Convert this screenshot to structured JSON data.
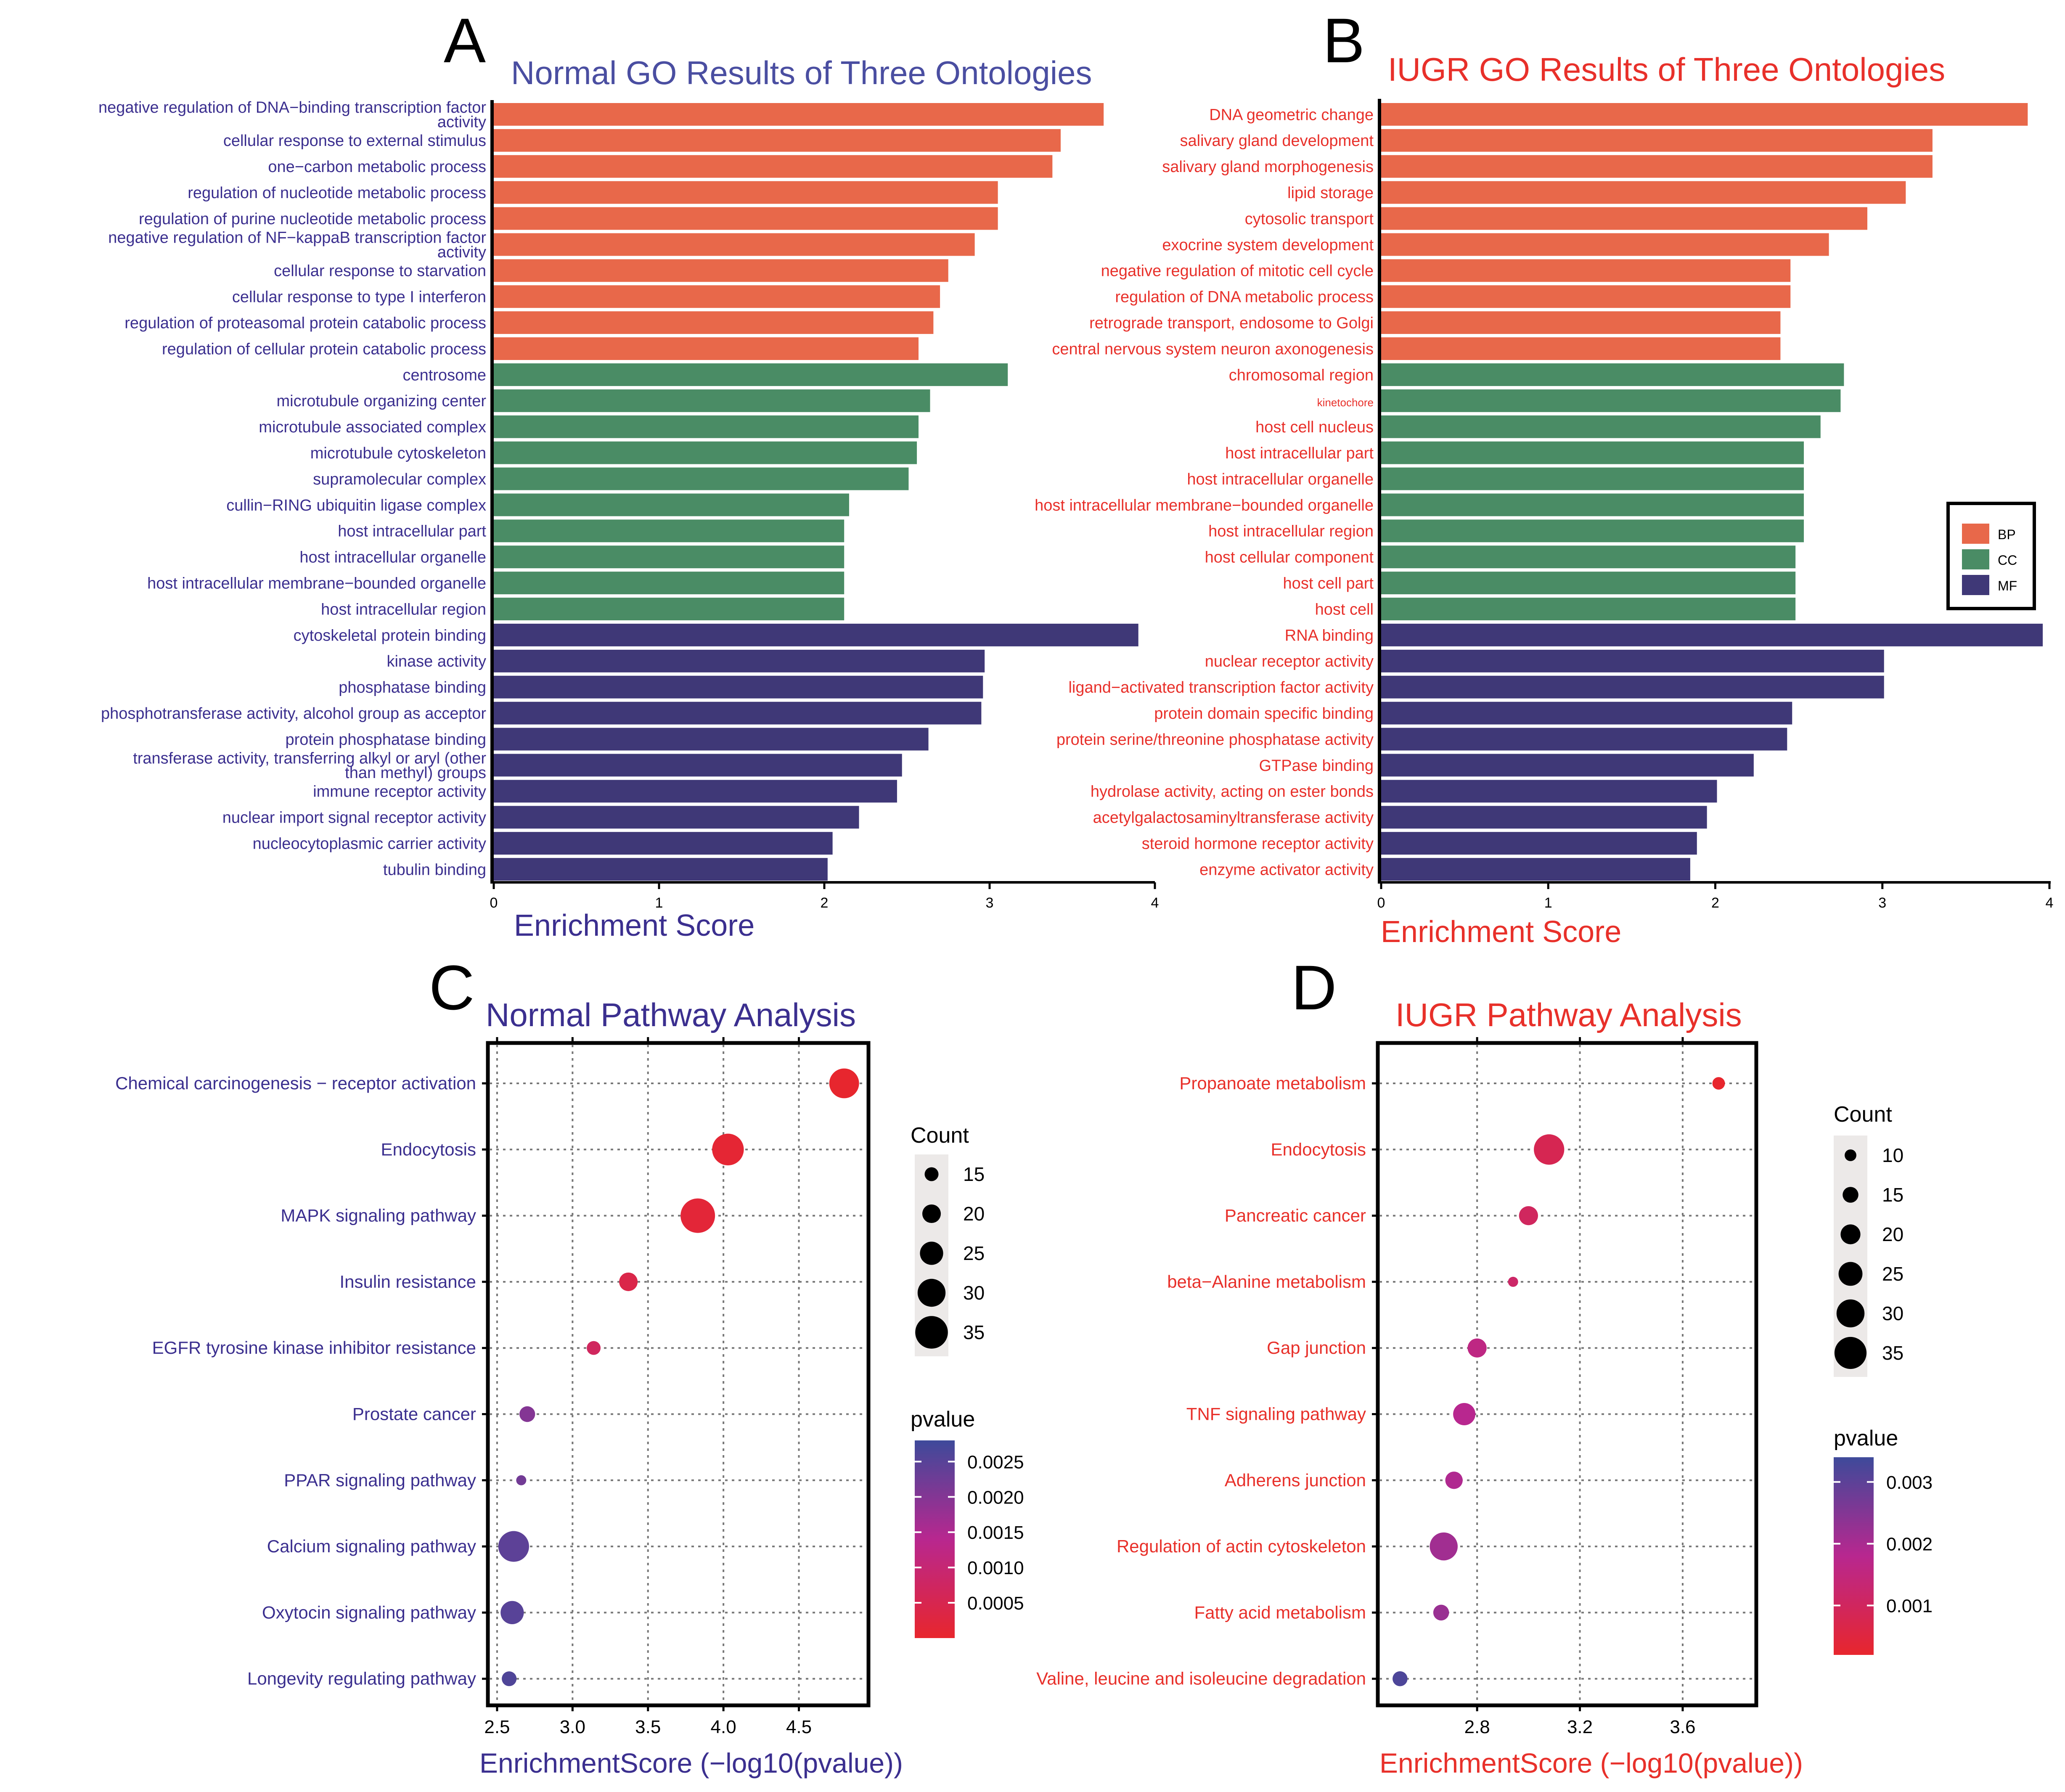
{
  "colors": {
    "bp": "#E8684A",
    "cc": "#4A8C65",
    "mf": "#3F3877",
    "normal_text": "#3B2F8F",
    "iugr_text": "#E8302A",
    "normal_title": "#4A4EA1",
    "iugr_title": "#E8302A",
    "p_low": "#E8262D",
    "p_mid": "#B8278F",
    "p_high": "#3E4A9A"
  },
  "chart_data": [
    {
      "panel": "A",
      "type": "bar",
      "orientation": "horizontal",
      "title": "Normal GO Results of Three Ontologies",
      "xlabel": "Enrichment Score",
      "xlim": [
        0,
        4
      ],
      "xticks": [
        "0",
        "1",
        "2",
        "3",
        "4"
      ],
      "bars": [
        {
          "label": "negative regulation of DNA−binding transcription factor activity",
          "value": 3.69,
          "category": "BP"
        },
        {
          "label": "cellular response to external stimulus",
          "value": 3.43,
          "category": "BP"
        },
        {
          "label": "one−carbon metabolic process",
          "value": 3.38,
          "category": "BP"
        },
        {
          "label": "regulation of nucleotide metabolic process",
          "value": 3.05,
          "category": "BP"
        },
        {
          "label": "regulation of purine nucleotide metabolic process",
          "value": 3.05,
          "category": "BP"
        },
        {
          "label": "negative regulation of NF−kappaB transcription factor activity",
          "value": 2.91,
          "category": "BP"
        },
        {
          "label": "cellular response to starvation",
          "value": 2.75,
          "category": "BP"
        },
        {
          "label": "cellular response to type I interferon",
          "value": 2.7,
          "category": "BP"
        },
        {
          "label": "regulation of proteasomal protein catabolic process",
          "value": 2.66,
          "category": "BP"
        },
        {
          "label": "regulation of cellular protein catabolic process",
          "value": 2.57,
          "category": "BP"
        },
        {
          "label": "centrosome",
          "value": 3.11,
          "category": "CC"
        },
        {
          "label": "microtubule organizing center",
          "value": 2.64,
          "category": "CC"
        },
        {
          "label": "microtubule associated complex",
          "value": 2.57,
          "category": "CC"
        },
        {
          "label": "microtubule cytoskeleton",
          "value": 2.56,
          "category": "CC"
        },
        {
          "label": "supramolecular complex",
          "value": 2.51,
          "category": "CC"
        },
        {
          "label": "cullin−RING ubiquitin ligase complex",
          "value": 2.15,
          "category": "CC"
        },
        {
          "label": "host intracellular part",
          "value": 2.12,
          "category": "CC"
        },
        {
          "label": "host intracellular organelle",
          "value": 2.12,
          "category": "CC"
        },
        {
          "label": "host intracellular membrane−bounded organelle",
          "value": 2.12,
          "category": "CC"
        },
        {
          "label": "host intracellular region",
          "value": 2.12,
          "category": "CC"
        },
        {
          "label": "cytoskeletal protein binding",
          "value": 3.9,
          "category": "MF"
        },
        {
          "label": "kinase activity",
          "value": 2.97,
          "category": "MF"
        },
        {
          "label": "phosphatase binding",
          "value": 2.96,
          "category": "MF"
        },
        {
          "label": "phosphotransferase activity, alcohol group as acceptor",
          "value": 2.95,
          "category": "MF"
        },
        {
          "label": "protein phosphatase binding",
          "value": 2.63,
          "category": "MF"
        },
        {
          "label": "transferase activity, transferring alkyl or aryl (other than methyl) groups",
          "value": 2.47,
          "category": "MF"
        },
        {
          "label": "immune receptor activity",
          "value": 2.44,
          "category": "MF"
        },
        {
          "label": "nuclear import signal receptor activity",
          "value": 2.21,
          "category": "MF"
        },
        {
          "label": "nucleocytoplasmic carrier activity",
          "value": 2.05,
          "category": "MF"
        },
        {
          "label": "tubulin binding",
          "value": 2.02,
          "category": "MF"
        }
      ]
    },
    {
      "panel": "B",
      "type": "bar",
      "orientation": "horizontal",
      "title": "IUGR GO Results of Three Ontologies",
      "xlabel": "Enrichment Score",
      "xlim": [
        0,
        4
      ],
      "xticks": [
        "0",
        "1",
        "2",
        "3",
        "4"
      ],
      "legend": {
        "position": "right",
        "entries": [
          "BP",
          "CC",
          "MF"
        ]
      },
      "bars": [
        {
          "label": "DNA geometric change",
          "value": 3.87,
          "category": "BP"
        },
        {
          "label": "salivary gland development",
          "value": 3.3,
          "category": "BP"
        },
        {
          "label": "salivary gland morphogenesis",
          "value": 3.3,
          "category": "BP"
        },
        {
          "label": "lipid storage",
          "value": 3.14,
          "category": "BP"
        },
        {
          "label": "cytosolic transport",
          "value": 2.91,
          "category": "BP"
        },
        {
          "label": "exocrine system development",
          "value": 2.68,
          "category": "BP"
        },
        {
          "label": "negative regulation of mitotic cell cycle",
          "value": 2.45,
          "category": "BP"
        },
        {
          "label": "regulation of DNA metabolic process",
          "value": 2.45,
          "category": "BP"
        },
        {
          "label": "retrograde transport, endosome to Golgi",
          "value": 2.39,
          "category": "BP"
        },
        {
          "label": "central nervous system neuron axonogenesis",
          "value": 2.39,
          "category": "BP"
        },
        {
          "label": "chromosomal region",
          "value": 2.77,
          "category": "CC"
        },
        {
          "label": "kinetochore",
          "value": 2.75,
          "category": "CC"
        },
        {
          "label": "host cell nucleus",
          "value": 2.63,
          "category": "CC"
        },
        {
          "label": "host intracellular part",
          "value": 2.53,
          "category": "CC"
        },
        {
          "label": "host intracellular organelle",
          "value": 2.53,
          "category": "CC"
        },
        {
          "label": "host intracellular membrane−bounded organelle",
          "value": 2.53,
          "category": "CC"
        },
        {
          "label": "host intracellular region",
          "value": 2.53,
          "category": "CC"
        },
        {
          "label": "host cellular component",
          "value": 2.48,
          "category": "CC"
        },
        {
          "label": "host cell part",
          "value": 2.48,
          "category": "CC"
        },
        {
          "label": "host cell",
          "value": 2.48,
          "category": "CC"
        },
        {
          "label": "RNA binding",
          "value": 3.96,
          "category": "MF"
        },
        {
          "label": "nuclear receptor activity",
          "value": 3.01,
          "category": "MF"
        },
        {
          "label": "ligand−activated transcription factor activity",
          "value": 3.01,
          "category": "MF"
        },
        {
          "label": "protein domain specific binding",
          "value": 2.46,
          "category": "MF"
        },
        {
          "label": "protein serine/threonine phosphatase activity",
          "value": 2.43,
          "category": "MF"
        },
        {
          "label": "GTPase binding",
          "value": 2.23,
          "category": "MF"
        },
        {
          "label": "hydrolase activity, acting on ester bonds",
          "value": 2.01,
          "category": "MF"
        },
        {
          "label": "acetylgalactosaminyltransferase activity",
          "value": 1.95,
          "category": "MF"
        },
        {
          "label": "steroid hormone receptor activity",
          "value": 1.89,
          "category": "MF"
        },
        {
          "label": "enzyme activator activity",
          "value": 1.85,
          "category": "MF"
        }
      ]
    },
    {
      "panel": "C",
      "type": "scatter",
      "title": "Normal Pathway Analysis",
      "xlabel": "EnrichmentScore (−log10(pvalue))",
      "xlim": [
        2.45,
        4.95
      ],
      "xticks": [
        2.5,
        3.0,
        3.5,
        4.0,
        4.5
      ],
      "xtick_labels": [
        "2.5",
        "3.0",
        "3.5",
        "4.0",
        "4.5"
      ],
      "points": [
        {
          "label": "Chemical carcinogenesis − receptor activation",
          "x": 4.8,
          "count": 32,
          "pvalue": 2e-05
        },
        {
          "label": "Endocytosis",
          "x": 4.03,
          "count": 34,
          "pvalue": 0.0001
        },
        {
          "label": "MAPK signaling pathway",
          "x": 3.83,
          "count": 37,
          "pvalue": 0.00015
        },
        {
          "label": "Insulin resistance",
          "x": 3.37,
          "count": 20,
          "pvalue": 0.0004
        },
        {
          "label": "EGFR tyrosine kinase inhibitor resistance",
          "x": 3.14,
          "count": 15,
          "pvalue": 0.0007
        },
        {
          "label": "Prostate cancer",
          "x": 2.7,
          "count": 17,
          "pvalue": 0.002
        },
        {
          "label": "PPAR signaling pathway",
          "x": 2.66,
          "count": 11,
          "pvalue": 0.0022
        },
        {
          "label": "Calcium signaling pathway",
          "x": 2.61,
          "count": 33,
          "pvalue": 0.00245
        },
        {
          "label": "Oxytocin signaling pathway",
          "x": 2.6,
          "count": 25,
          "pvalue": 0.0025
        },
        {
          "label": "Longevity regulating pathway",
          "x": 2.58,
          "count": 16,
          "pvalue": 0.0026
        }
      ],
      "size_legend": {
        "title": "Count",
        "values": [
          15,
          20,
          25,
          30,
          35
        ],
        "range": [
          11,
          37
        ]
      },
      "color_legend": {
        "title": "pvalue",
        "ticks": [
          0.0025,
          0.002,
          0.0015,
          0.001,
          0.0005
        ],
        "tick_labels": [
          "0.0025",
          "0.0020",
          "0.0015",
          "0.0010",
          "0.0005"
        ],
        "range": [
          0.0,
          0.0028
        ]
      }
    },
    {
      "panel": "D",
      "type": "scatter",
      "title": "IUGR Pathway Analysis",
      "xlabel": "EnrichmentScore (−log10(pvalue))",
      "xlim": [
        2.42,
        3.88
      ],
      "xticks": [
        2.8,
        3.2,
        3.6
      ],
      "xtick_labels": [
        "2.8",
        "3.2",
        "3.6"
      ],
      "points": [
        {
          "label": "Propanoate metabolism",
          "x": 3.74,
          "count": 11,
          "pvalue": 0.0002
        },
        {
          "label": "Endocytosis",
          "x": 3.08,
          "count": 33,
          "pvalue": 0.0008
        },
        {
          "label": "Pancreatic cancer",
          "x": 3.0,
          "count": 19,
          "pvalue": 0.001
        },
        {
          "label": "beta−Alanine metabolism",
          "x": 2.94,
          "count": 8,
          "pvalue": 0.00115
        },
        {
          "label": "Gap junction",
          "x": 2.8,
          "count": 19,
          "pvalue": 0.0016
        },
        {
          "label": "TNF signaling pathway",
          "x": 2.75,
          "count": 23,
          "pvalue": 0.0018
        },
        {
          "label": "Adherens junction",
          "x": 2.71,
          "count": 17,
          "pvalue": 0.0019
        },
        {
          "label": "Regulation of actin cytoskeleton",
          "x": 2.67,
          "count": 30,
          "pvalue": 0.0021
        },
        {
          "label": "Fatty acid metabolism",
          "x": 2.66,
          "count": 15,
          "pvalue": 0.0022
        },
        {
          "label": "Valine, leucine and isoleucine degradation",
          "x": 2.5,
          "count": 14,
          "pvalue": 0.0032
        }
      ],
      "size_legend": {
        "title": "Count",
        "values": [
          10,
          15,
          20,
          25,
          30,
          35
        ],
        "range": [
          8,
          37
        ]
      },
      "color_legend": {
        "title": "pvalue",
        "ticks": [
          0.003,
          0.002,
          0.001
        ],
        "tick_labels": [
          "0.003",
          "0.002",
          "0.001"
        ],
        "range": [
          0.0002,
          0.0034
        ]
      }
    }
  ]
}
